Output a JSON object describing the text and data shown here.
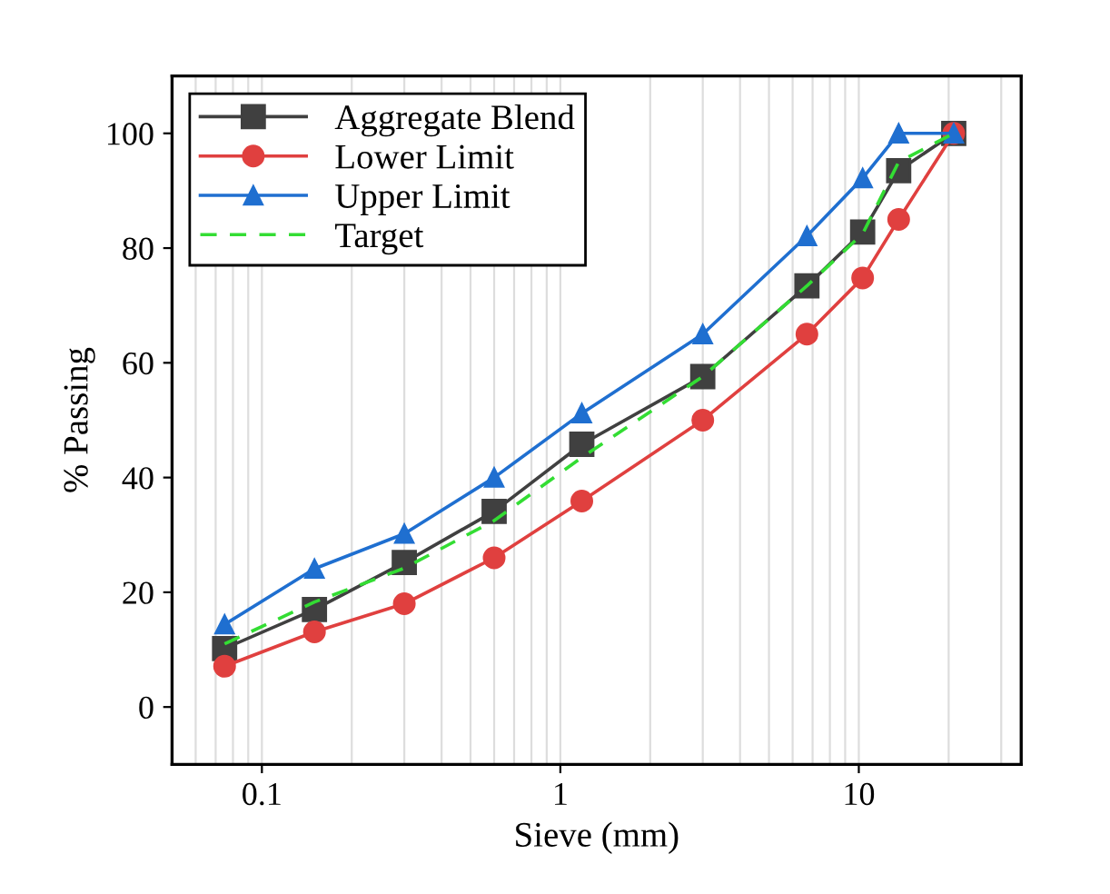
{
  "chart_data": {
    "type": "line",
    "xlabel": "Sieve (mm)",
    "ylabel": "% Passing",
    "log": "x",
    "x": [
      0.075,
      0.15,
      0.3,
      0.6,
      1.18,
      3,
      6.7,
      10.3,
      13.6,
      20.8
    ],
    "series": [
      {
        "name": "Aggregate Blend",
        "color": "#404040",
        "marker": "square",
        "line_style": "solid",
        "values": [
          10.2,
          17,
          25.2,
          34.1,
          45.8,
          57.6,
          73.4,
          82.8,
          93.5,
          100
        ]
      },
      {
        "name": "Lower Limit",
        "color": "#e0403f",
        "marker": "circle",
        "line_style": "solid",
        "values": [
          7.1,
          13.1,
          18,
          26,
          35.9,
          50,
          65,
          74.8,
          85,
          100
        ]
      },
      {
        "name": "Upper Limit",
        "color": "#1f6fd0",
        "marker": "triangle",
        "line_style": "solid",
        "values": [
          14.4,
          24.1,
          30.2,
          40,
          51.2,
          65,
          82.1,
          92.2,
          100,
          100
        ]
      },
      {
        "name": "Target",
        "color": "#33dd33",
        "marker": "none",
        "line_style": "dashed",
        "values": [
          11,
          18.3,
          24.2,
          32.5,
          43.5,
          57.6,
          73.4,
          82.5,
          95,
          100
        ]
      }
    ],
    "xlim": [
      0.05,
      35
    ],
    "ylim": [
      -10,
      110
    ],
    "xticks": [
      {
        "value": 0.1,
        "label": "0.1"
      },
      1,
      10
    ],
    "yticks": [
      0,
      20,
      40,
      60,
      80,
      100
    ],
    "grid": "x",
    "legend": "top left"
  }
}
